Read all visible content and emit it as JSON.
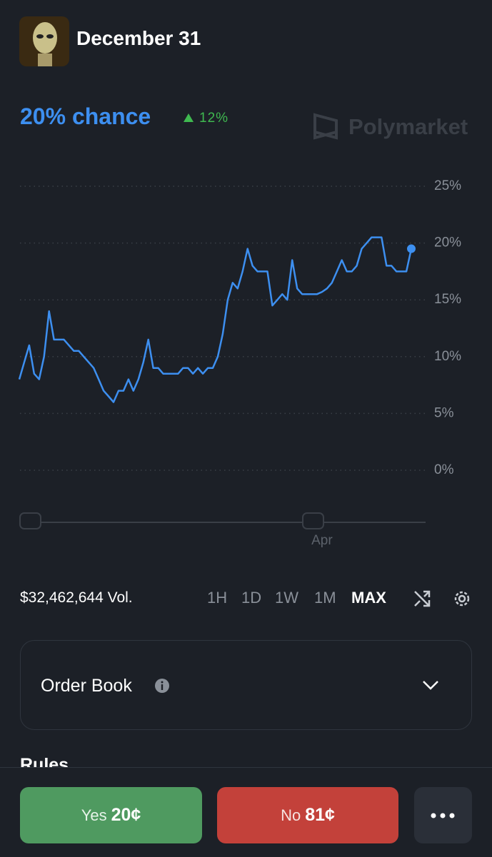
{
  "header": {
    "title": "December 31"
  },
  "chance": {
    "label": "20% chance",
    "change": "12%"
  },
  "brand": "Polymarket",
  "chart_data": {
    "type": "line",
    "categories": [
      null,
      null,
      null,
      null,
      null,
      null,
      null,
      null,
      null,
      null,
      null,
      null,
      null,
      null,
      null,
      null,
      null,
      null,
      null,
      null,
      null,
      null,
      null,
      null,
      null,
      null,
      null,
      null,
      null,
      null,
      null,
      null,
      null,
      null,
      null,
      null,
      null,
      null,
      null,
      null,
      null,
      null,
      null,
      null,
      null,
      null,
      null,
      null,
      null,
      null,
      null,
      null,
      null,
      null,
      null,
      null,
      null,
      null,
      null,
      null,
      null,
      "Apr",
      null,
      null,
      null,
      null,
      null,
      null,
      null,
      null,
      null,
      null,
      null,
      null,
      null,
      null,
      null,
      null,
      null,
      null
    ],
    "values": [
      8,
      9.5,
      11,
      8.5,
      8,
      10,
      14,
      11.5,
      11.5,
      11.5,
      11,
      10.5,
      10.5,
      10,
      9.5,
      9,
      8,
      7,
      6.5,
      6,
      7,
      7,
      8,
      7,
      8,
      9.5,
      11.5,
      9,
      9,
      8.5,
      8.5,
      8.5,
      8.5,
      9,
      9,
      8.5,
      9,
      8.5,
      9,
      9,
      10,
      12,
      15,
      16.5,
      16,
      17.5,
      19.5,
      18,
      17.5,
      17.5,
      17.5,
      14.5,
      15,
      15.5,
      15,
      18.5,
      16,
      15.5,
      15.5,
      15.5,
      15.5,
      15.7,
      16,
      16.5,
      17.5,
      18.5,
      17.5,
      17.5,
      18,
      19.5,
      20,
      20.5,
      20.5,
      20.5,
      18,
      18,
      17.5,
      17.5,
      17.5,
      19.5
    ],
    "color": "#3d8ff0",
    "ylim": [
      0,
      25
    ],
    "yticks": [
      {
        "value": 0,
        "label": "0%"
      },
      {
        "value": 5,
        "label": "5%"
      },
      {
        "value": 10,
        "label": "10%"
      },
      {
        "value": 15,
        "label": "15%"
      },
      {
        "value": 20,
        "label": "20%"
      },
      {
        "value": 25,
        "label": "25%"
      }
    ],
    "grid": true
  },
  "volume": "$32,462,644 Vol.",
  "ranges": [
    "1H",
    "1D",
    "1W",
    "1M",
    "MAX"
  ],
  "order_book": "Order Book",
  "rules": "Rules",
  "yes": {
    "label": "Yes",
    "price": "20¢"
  },
  "no": {
    "label": "No",
    "price": "81¢"
  }
}
